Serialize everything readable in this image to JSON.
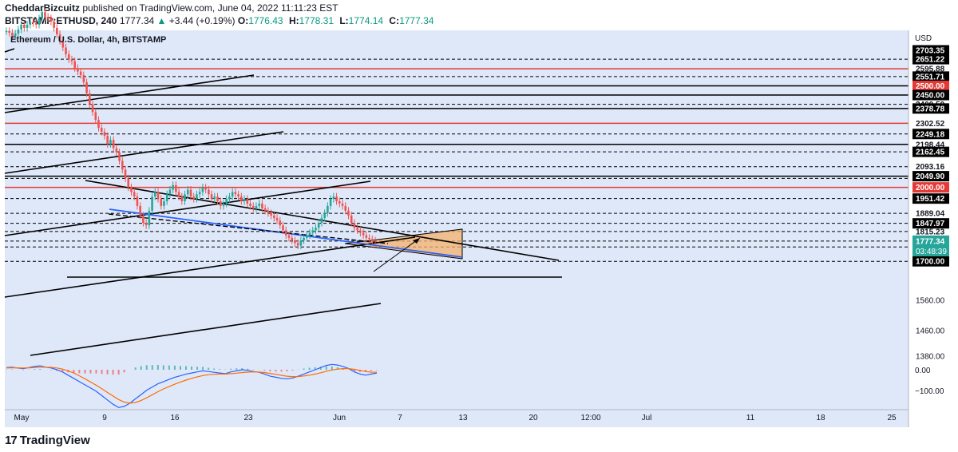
{
  "header": {
    "author": "CheddarBizcuitz",
    "published_text": "published on TradingView.com, June 04, 2022 11:11:23 EST",
    "symbol": "BITSTAMP:ETHUSD, 240",
    "last": "1777.34",
    "change": "+3.44 (+0.19%)",
    "o_label": "O:",
    "o": "1776.43",
    "h_label": "H:",
    "h": "1778.31",
    "l_label": "L:",
    "l": "1774.14",
    "c_label": "C:",
    "c": "1777.34"
  },
  "legend_title": "Ethereum / U.S. Dollar, 4h, BITSTAMP",
  "footer": {
    "brand_mark": "17",
    "brand_name": "TradingView"
  },
  "colors": {
    "background": "#dfe8f9",
    "up": "#26a69a",
    "down": "#ef5350",
    "red_level": "#e53935",
    "trend": "#000000",
    "blue_line": "#2962ff",
    "zone_fill": "#f6b26b",
    "macd": "#2962ff",
    "signal": "#ff6d00"
  },
  "chart_data": {
    "type": "candlestick",
    "title": "Ethereum / U.S. Dollar, 4h, BITSTAMP",
    "currency": "USD",
    "scale": "log",
    "price_axis_labels": [
      {
        "value": 2703.35,
        "style": "black"
      },
      {
        "value": 2651.22,
        "style": "black"
      },
      {
        "value": 2595.88,
        "style": "plain"
      },
      {
        "value": 2551.71,
        "style": "black"
      },
      {
        "value": 2500.0,
        "style": "red"
      },
      {
        "value": 2450.0,
        "style": "black"
      },
      {
        "value": 2400.59,
        "style": "plain"
      },
      {
        "value": 2378.78,
        "style": "black"
      },
      {
        "value": 2302.52,
        "style": "plain"
      },
      {
        "value": 2249.18,
        "style": "black"
      },
      {
        "value": 2198.44,
        "style": "plain"
      },
      {
        "value": 2162.45,
        "style": "black"
      },
      {
        "value": 2093.16,
        "style": "plain"
      },
      {
        "value": 2049.9,
        "style": "black"
      },
      {
        "value": 2000.0,
        "style": "red"
      },
      {
        "value": 1951.42,
        "style": "black"
      },
      {
        "value": 1889.04,
        "style": "plain"
      },
      {
        "value": 1847.97,
        "style": "black"
      },
      {
        "value": 1815.23,
        "style": "plain"
      },
      {
        "value": 1754.6,
        "style": "plain"
      },
      {
        "value": 1700.0,
        "style": "black"
      },
      {
        "value": 1560.0,
        "style": "scale"
      },
      {
        "value": 1460.0,
        "style": "scale"
      },
      {
        "value": 1380.0,
        "style": "scale"
      }
    ],
    "last_price": "1777.34",
    "countdown": "03:48:39",
    "red_levels": [
      2595.88,
      2302.52,
      2000.0
    ],
    "solid_levels": [
      2500.0,
      2450.0,
      2378.78,
      2198.44,
      2049.9
    ],
    "dashed_levels": [
      2651.22,
      2551.71,
      2400.59,
      2249.18,
      2162.45,
      2093.16,
      2040.0,
      1951.42,
      1889.04,
      1847.97,
      1815.23,
      1777.34,
      1754.6,
      1700.0
    ],
    "x_axis_labels": [
      "May",
      "9",
      "16",
      "23",
      "Jun",
      "7",
      "13",
      "20",
      "12:00",
      "Jul",
      "11",
      "18",
      "25"
    ],
    "candles_close": [
      2820,
      2810,
      2790,
      2805,
      2830,
      2860,
      2840,
      2860,
      2880,
      2870,
      2860,
      2900,
      2940,
      2910,
      2900,
      2880,
      2840,
      2800,
      2760,
      2720,
      2680,
      2650,
      2640,
      2600,
      2580,
      2560,
      2520,
      2460,
      2400,
      2360,
      2320,
      2280,
      2260,
      2240,
      2200,
      2220,
      2180,
      2160,
      2120,
      2080,
      2040,
      2000,
      1980,
      1960,
      1920,
      1880,
      1850,
      1840,
      1900,
      1960,
      1980,
      1950,
      1920,
      1940,
      1970,
      1990,
      2010,
      1980,
      1960,
      1940,
      1970,
      1990,
      1960,
      1950,
      1970,
      1980,
      2000,
      1990,
      1970,
      1950,
      1960,
      1940,
      1920,
      1930,
      1950,
      1960,
      1980,
      1970,
      1960,
      1940,
      1950,
      1930,
      1920,
      1910,
      1920,
      1930,
      1910,
      1900,
      1890,
      1880,
      1870,
      1860,
      1840,
      1820,
      1800,
      1790,
      1780,
      1770,
      1760,
      1780,
      1790,
      1800,
      1810,
      1820,
      1830,
      1850,
      1870,
      1890,
      1920,
      1950,
      1960,
      1940,
      1930,
      1920,
      1900,
      1880,
      1850,
      1830,
      1820,
      1810,
      1800,
      1790,
      1785,
      1780,
      1777.34
    ],
    "indicator": {
      "name": "MACD",
      "axis_labels": [
        "0.00",
        "−100.00"
      ],
      "macd": [
        10,
        12,
        8,
        5,
        10,
        15,
        18,
        12,
        8,
        0,
        -10,
        -25,
        -40,
        -55,
        -70,
        -85,
        -100,
        -120,
        -140,
        -160,
        -175,
        -170,
        -155,
        -135,
        -115,
        -95,
        -80,
        -65,
        -55,
        -45,
        -35,
        -28,
        -20,
        -15,
        -10,
        -5,
        -8,
        -12,
        -15,
        -18,
        -10,
        -5,
        0,
        -3,
        -8,
        -12,
        -20,
        -30,
        -35,
        -40,
        -42,
        -38,
        -30,
        -20,
        -10,
        0,
        10,
        20,
        25,
        22,
        15,
        5,
        -10,
        -20,
        -25,
        -20,
        -15
      ],
      "signal": [
        8,
        9,
        9,
        8,
        9,
        10,
        12,
        12,
        11,
        8,
        3,
        -5,
        -15,
        -28,
        -42,
        -57,
        -72,
        -88,
        -105,
        -122,
        -138,
        -150,
        -155,
        -152,
        -143,
        -130,
        -116,
        -102,
        -89,
        -78,
        -67,
        -57,
        -48,
        -40,
        -33,
        -27,
        -23,
        -21,
        -20,
        -20,
        -18,
        -16,
        -13,
        -11,
        -10,
        -11,
        -13,
        -17,
        -21,
        -26,
        -30,
        -32,
        -32,
        -29,
        -25,
        -20,
        -14,
        -7,
        -1,
        3,
        5,
        5,
        2,
        -3,
        -8,
        -11,
        -12
      ]
    }
  }
}
